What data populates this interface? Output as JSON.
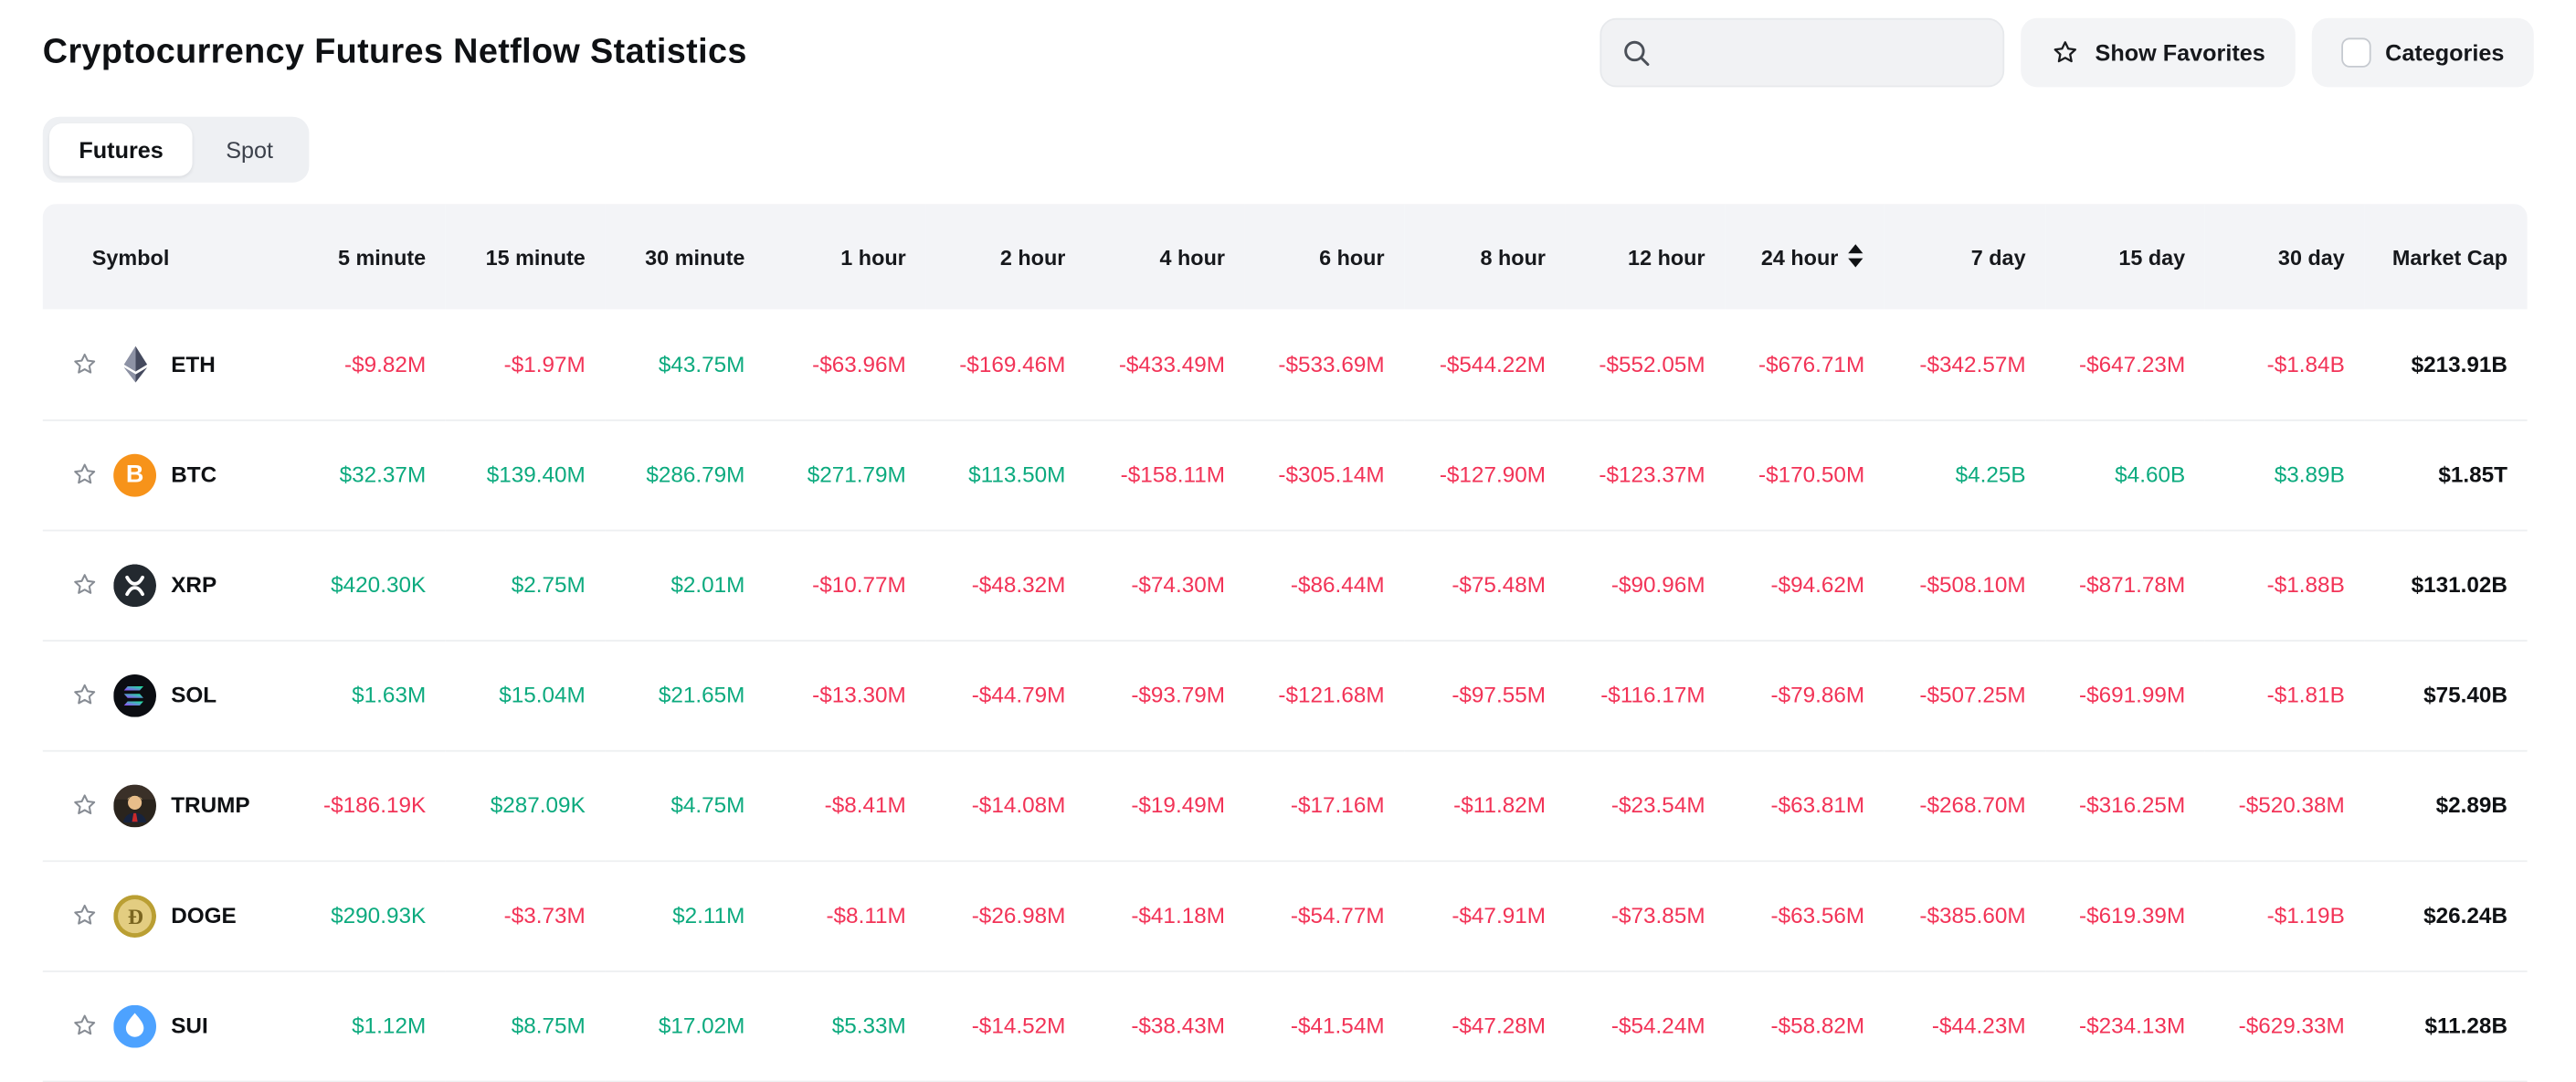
{
  "page": {
    "title": "Cryptocurrency Futures Netflow Statistics"
  },
  "toolbar": {
    "search": {
      "placeholder": "",
      "value": "",
      "icon": "search-icon"
    },
    "show_favorites": {
      "label": "Show Favorites",
      "icon": "star-icon"
    },
    "categories": {
      "label": "Categories",
      "checkbox_checked": false
    }
  },
  "tabs": {
    "items": [
      {
        "label": "Futures",
        "active": true
      },
      {
        "label": "Spot",
        "active": false
      }
    ]
  },
  "table": {
    "columns": [
      "Symbol",
      "5 minute",
      "15 minute",
      "30 minute",
      "1 hour",
      "2 hour",
      "4 hour",
      "6 hour",
      "8 hour",
      "12 hour",
      "24 hour",
      "7 day",
      "15 day",
      "30 day",
      "Market Cap"
    ],
    "sorted_column": "24 hour",
    "sort_icon": "sort-arrows-icon",
    "rows": [
      {
        "symbol": "ETH",
        "icon": "eth-icon",
        "values": [
          "-$9.82M",
          "-$1.97M",
          "$43.75M",
          "-$63.96M",
          "-$169.46M",
          "-$433.49M",
          "-$533.69M",
          "-$544.22M",
          "-$552.05M",
          "-$676.71M",
          "-$342.57M",
          "-$647.23M",
          "-$1.84B"
        ],
        "market_cap": "$213.91B"
      },
      {
        "symbol": "BTC",
        "icon": "btc-icon",
        "values": [
          "$32.37M",
          "$139.40M",
          "$286.79M",
          "$271.79M",
          "$113.50M",
          "-$158.11M",
          "-$305.14M",
          "-$127.90M",
          "-$123.37M",
          "-$170.50M",
          "$4.25B",
          "$4.60B",
          "$3.89B"
        ],
        "market_cap": "$1.85T"
      },
      {
        "symbol": "XRP",
        "icon": "xrp-icon",
        "values": [
          "$420.30K",
          "$2.75M",
          "$2.01M",
          "-$10.77M",
          "-$48.32M",
          "-$74.30M",
          "-$86.44M",
          "-$75.48M",
          "-$90.96M",
          "-$94.62M",
          "-$508.10M",
          "-$871.78M",
          "-$1.88B"
        ],
        "market_cap": "$131.02B"
      },
      {
        "symbol": "SOL",
        "icon": "sol-icon",
        "values": [
          "$1.63M",
          "$15.04M",
          "$21.65M",
          "-$13.30M",
          "-$44.79M",
          "-$93.79M",
          "-$121.68M",
          "-$97.55M",
          "-$116.17M",
          "-$79.86M",
          "-$507.25M",
          "-$691.99M",
          "-$1.81B"
        ],
        "market_cap": "$75.40B"
      },
      {
        "symbol": "TRUMP",
        "icon": "trump-icon",
        "values": [
          "-$186.19K",
          "$287.09K",
          "$4.75M",
          "-$8.41M",
          "-$14.08M",
          "-$19.49M",
          "-$17.16M",
          "-$11.82M",
          "-$23.54M",
          "-$63.81M",
          "-$268.70M",
          "-$316.25M",
          "-$520.38M"
        ],
        "market_cap": "$2.89B"
      },
      {
        "symbol": "DOGE",
        "icon": "doge-icon",
        "values": [
          "$290.93K",
          "-$3.73M",
          "$2.11M",
          "-$8.11M",
          "-$26.98M",
          "-$41.18M",
          "-$54.77M",
          "-$47.91M",
          "-$73.85M",
          "-$63.56M",
          "-$385.60M",
          "-$619.39M",
          "-$1.19B"
        ],
        "market_cap": "$26.24B"
      },
      {
        "symbol": "SUI",
        "icon": "sui-icon",
        "values": [
          "$1.12M",
          "$8.75M",
          "$17.02M",
          "$5.33M",
          "-$14.52M",
          "-$38.43M",
          "-$41.54M",
          "-$47.28M",
          "-$54.24M",
          "-$58.82M",
          "-$44.23M",
          "-$234.13M",
          "-$629.33M"
        ],
        "market_cap": "$11.28B"
      }
    ]
  },
  "colors": {
    "positive": "#0caa7e",
    "negative": "#f23357"
  }
}
